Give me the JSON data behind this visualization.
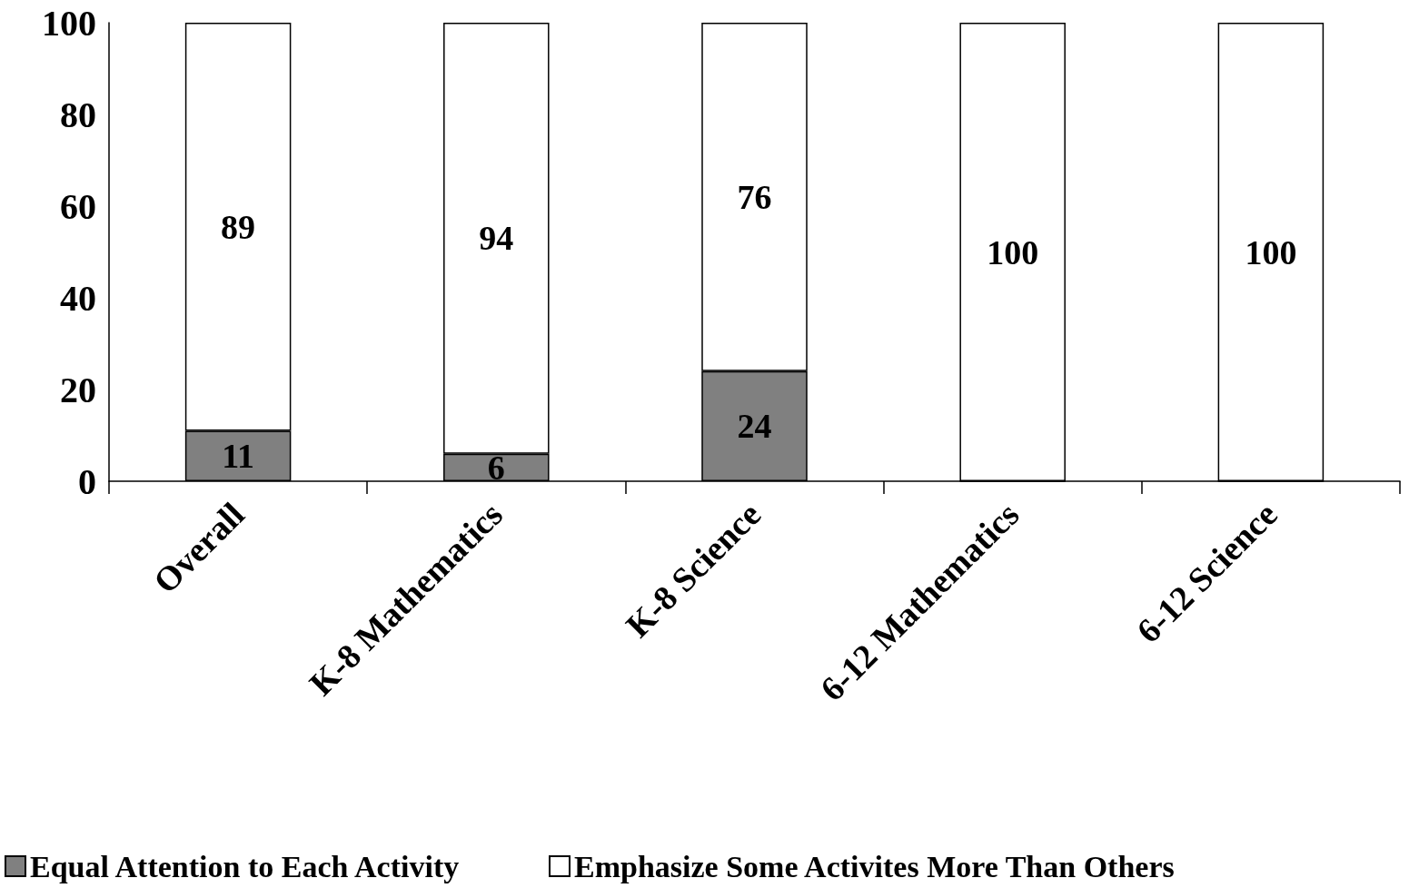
{
  "chart_data": {
    "type": "bar",
    "stacked": true,
    "categories": [
      "Overall",
      "K-8 Mathematics",
      "K-8 Science",
      "6-12 Mathematics",
      "6-12 Science"
    ],
    "series": [
      {
        "name": "Equal Attention to Each Activity",
        "color": "#808080",
        "values": [
          11,
          6,
          24,
          0,
          0
        ],
        "value_labels": [
          "11",
          "6",
          "24",
          null,
          null
        ]
      },
      {
        "name": "Emphasize Some Activites More Than Others",
        "color": "#ffffff",
        "values": [
          89,
          94,
          76,
          100,
          100
        ],
        "value_labels": [
          "89",
          "94",
          "76",
          "100",
          "100"
        ]
      }
    ],
    "ylim": [
      0,
      100
    ],
    "yticks": [
      0,
      20,
      40,
      60,
      80,
      100
    ],
    "grid": false,
    "legend": "bottom"
  }
}
